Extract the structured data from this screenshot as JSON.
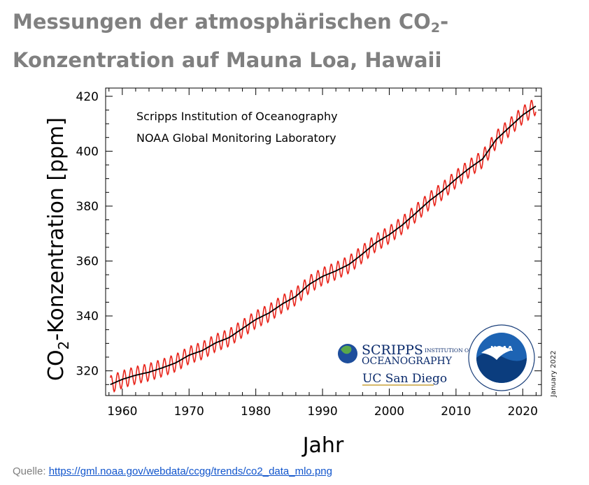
{
  "title": {
    "part1": "Messungen der atmosphärischen CO",
    "sub": "2",
    "part2": "-Konzentration auf Mauna Loa, Hawaii"
  },
  "source": {
    "label": "Quelle: ",
    "link": "https://gml.noaa.gov/webdata/ccgg/trends/co2_data_mlo.png"
  },
  "chart_data": {
    "type": "line",
    "xlabel": "Jahr",
    "ylabel": {
      "pre": "CO",
      "sub": "2",
      "post": "-Konzentration [ppm]"
    },
    "xlim": [
      1957.5,
      2022.8
    ],
    "ylim": [
      311,
      423
    ],
    "xticks": [
      1960,
      1970,
      1980,
      1990,
      2000,
      2010,
      2020
    ],
    "yticks": [
      320,
      340,
      360,
      380,
      400,
      420
    ],
    "annotations": [
      "Scripps Institution of Oceanography",
      "NOAA Global Monitoring Laboratory"
    ],
    "date_stamp": "January 2022",
    "logos": {
      "scripps_line1": "SCRIPPS",
      "scripps_small": "INSTITUTION OF",
      "scripps_line2": "OCEANOGRAPHY",
      "ucsd": "UC San Diego",
      "noaa": "NOAA"
    },
    "series": [
      {
        "color": "#e8251c",
        "seasonal_amplitude": 3.2,
        "style": "monthly"
      },
      {
        "color": "#000000",
        "style": "trend",
        "x": [
          1958.2,
          1960,
          1962,
          1964,
          1966,
          1968,
          1970,
          1972,
          1974,
          1976,
          1978,
          1980,
          1982,
          1984,
          1986,
          1988,
          1990,
          1992,
          1994,
          1996,
          1998,
          2000,
          2002,
          2004,
          2006,
          2008,
          2010,
          2012,
          2014,
          2016,
          2018,
          2020,
          2022.0
        ],
        "values": [
          315.0,
          316.9,
          318.4,
          319.5,
          321.1,
          322.9,
          325.7,
          327.4,
          330.2,
          332.1,
          335.4,
          338.7,
          341.1,
          344.4,
          347.1,
          351.5,
          354.4,
          356.4,
          358.8,
          362.6,
          366.7,
          369.6,
          373.2,
          377.5,
          381.9,
          385.6,
          389.9,
          393.8,
          397.2,
          404.2,
          408.7,
          413.2,
          416.5
        ]
      }
    ]
  }
}
